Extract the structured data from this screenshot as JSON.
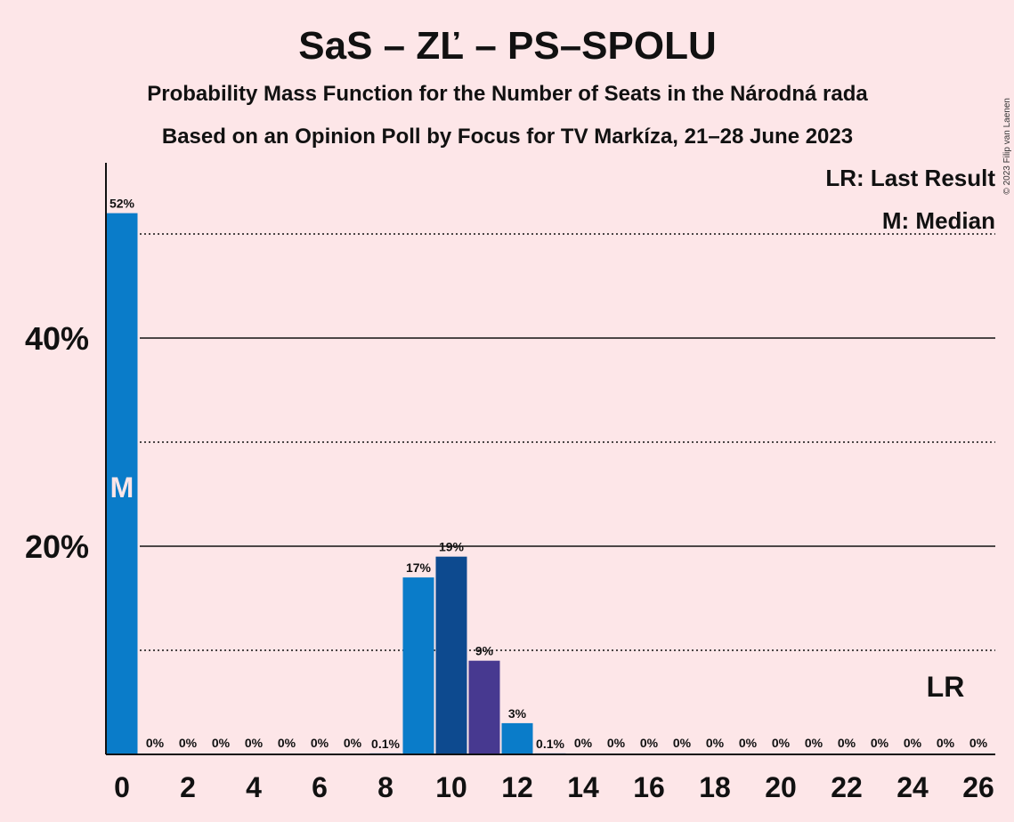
{
  "title": "SaS – ZĽ – PS–SPOLU",
  "subtitle": "Probability Mass Function for the Number of Seats in the Národná rada",
  "subtitle2": "Based on an Opinion Poll by Focus for TV Markíza, 21–28 June 2023",
  "copyright": "© 2023 Filip van Laenen",
  "legend": {
    "lr": "LR: Last Result",
    "m": "M: Median"
  },
  "markers": {
    "median_label": "M",
    "median_seat": 0,
    "lr_label": "LR",
    "lr_seat": 25
  },
  "colors": {
    "background": "#fde6e8",
    "bar_main": "#0a7cc9",
    "bar_dark": "#0d4a8f",
    "bar_purple": "#473990",
    "axis": "#111111"
  },
  "chart_data": {
    "type": "bar",
    "x": [
      0,
      1,
      2,
      3,
      4,
      5,
      6,
      7,
      8,
      9,
      10,
      11,
      12,
      13,
      14,
      15,
      16,
      17,
      18,
      19,
      20,
      21,
      22,
      23,
      24,
      25,
      26
    ],
    "values": [
      52,
      0,
      0,
      0,
      0,
      0,
      0,
      0,
      0.1,
      17,
      19,
      9,
      3,
      0.1,
      0,
      0,
      0,
      0,
      0,
      0,
      0,
      0,
      0,
      0,
      0,
      0,
      0
    ],
    "labels": [
      "52%",
      "0%",
      "0%",
      "0%",
      "0%",
      "0%",
      "0%",
      "0%",
      "0.1%",
      "17%",
      "19%",
      "9%",
      "3%",
      "0.1%",
      "0%",
      "0%",
      "0%",
      "0%",
      "0%",
      "0%",
      "0%",
      "0%",
      "0%",
      "0%",
      "0%",
      "0%",
      "0%"
    ],
    "bar_colors": [
      "#0a7cc9",
      "#0a7cc9",
      "#0a7cc9",
      "#0a7cc9",
      "#0a7cc9",
      "#0a7cc9",
      "#0a7cc9",
      "#0a7cc9",
      "#0a7cc9",
      "#0a7cc9",
      "#0d4a8f",
      "#473990",
      "#0a7cc9",
      "#0a7cc9",
      "#0a7cc9",
      "#0a7cc9",
      "#0a7cc9",
      "#0a7cc9",
      "#0a7cc9",
      "#0a7cc9",
      "#0a7cc9",
      "#0a7cc9",
      "#0a7cc9",
      "#0a7cc9",
      "#0a7cc9",
      "#0a7cc9",
      "#0a7cc9"
    ],
    "xticks": [
      0,
      2,
      4,
      6,
      8,
      10,
      12,
      14,
      16,
      18,
      20,
      22,
      24,
      26
    ],
    "yticks": [
      {
        "value": 20,
        "label": "20%"
      },
      {
        "value": 40,
        "label": "40%"
      }
    ],
    "gridlines_solid": [
      20,
      40
    ],
    "gridlines_dotted": [
      10,
      30,
      50
    ],
    "ylim": [
      0,
      56
    ]
  }
}
